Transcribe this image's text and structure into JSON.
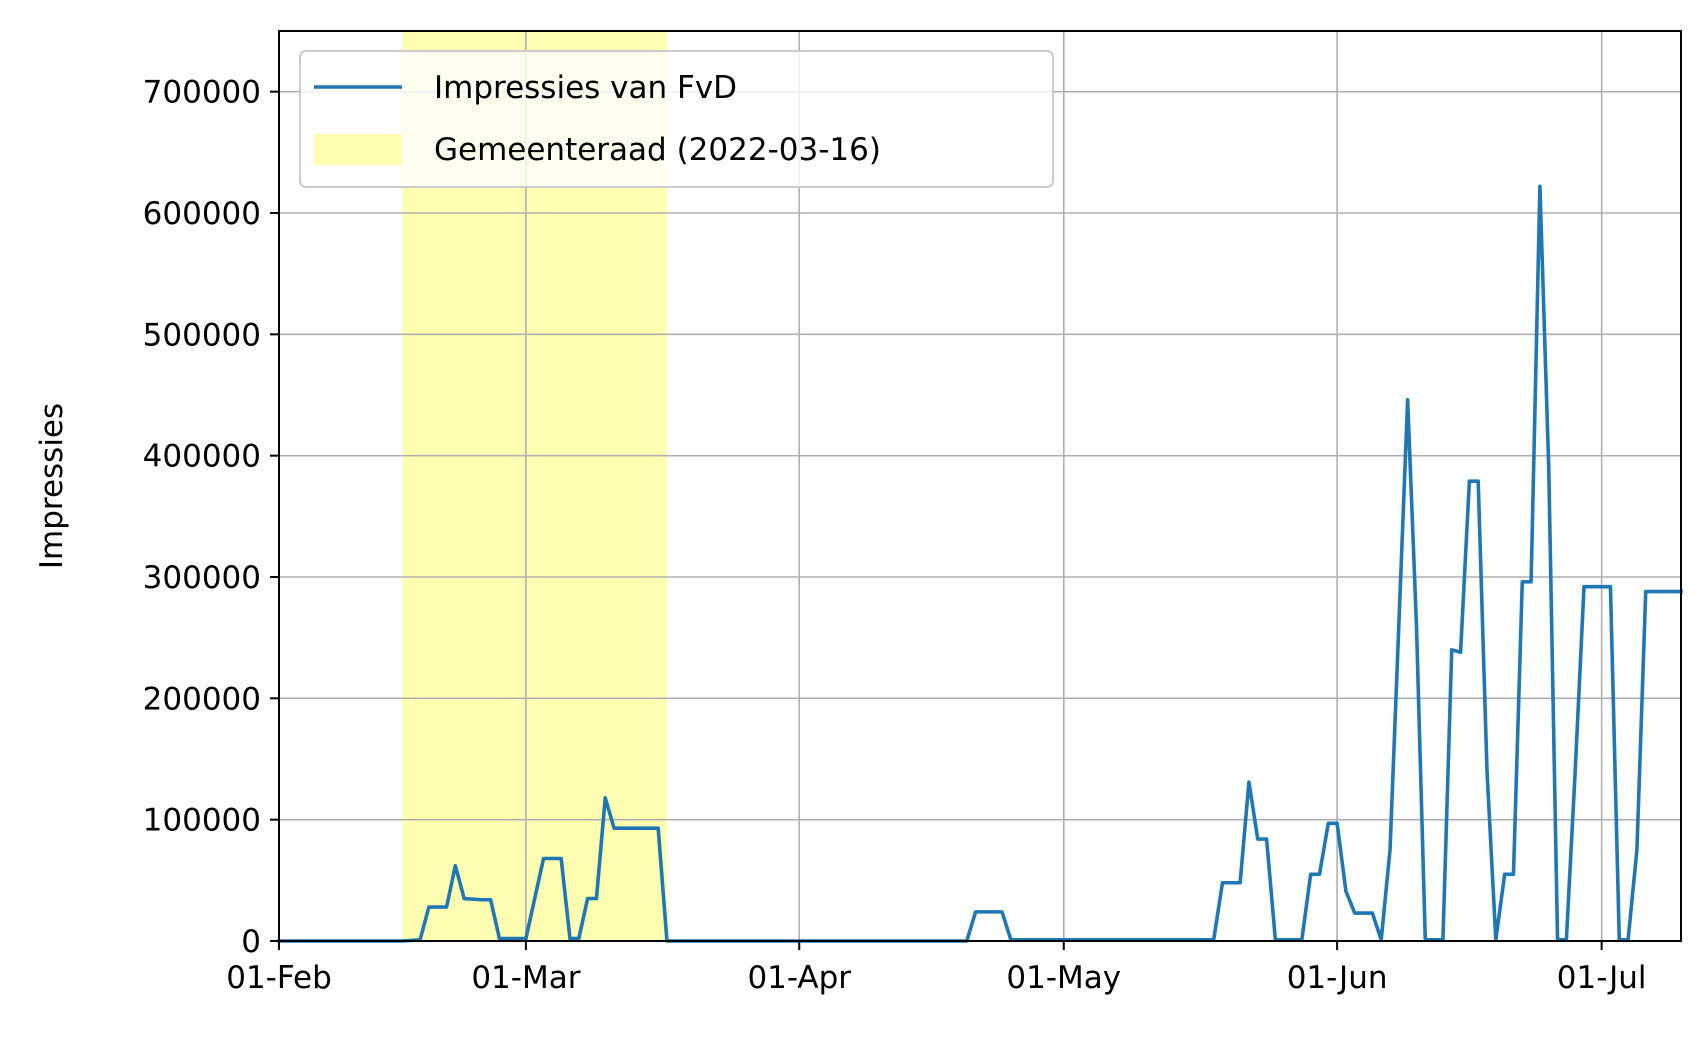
{
  "chart_data": {
    "type": "line",
    "title": "",
    "xlabel": "",
    "ylabel": "Impressies",
    "x_tick_labels": [
      "01-Feb",
      "01-Mar",
      "01-Apr",
      "01-May",
      "01-Jun",
      "01-Jul"
    ],
    "x_tick_dates": [
      "2022-02-01",
      "2022-03-01",
      "2022-04-01",
      "2022-05-01",
      "2022-06-01",
      "2022-07-01"
    ],
    "xlim": [
      "2022-02-01",
      "2022-07-10"
    ],
    "y_tick_labels": [
      "0",
      "100000",
      "200000",
      "300000",
      "400000",
      "500000",
      "600000",
      "700000"
    ],
    "y_ticks": [
      0,
      100000,
      200000,
      300000,
      400000,
      500000,
      600000,
      700000
    ],
    "ylim": [
      0,
      750000
    ],
    "grid": true,
    "legend_position": "top-left",
    "series": [
      {
        "name": "Impressies van FvD",
        "color": "#1f77b4",
        "points": [
          [
            "2022-02-01",
            0
          ],
          [
            "2022-02-15",
            0
          ],
          [
            "2022-02-17",
            1000
          ],
          [
            "2022-02-18",
            28000
          ],
          [
            "2022-02-20",
            28000
          ],
          [
            "2022-02-21",
            62000
          ],
          [
            "2022-02-22",
            35000
          ],
          [
            "2022-02-24",
            34000
          ],
          [
            "2022-02-25",
            34000
          ],
          [
            "2022-02-26",
            2000
          ],
          [
            "2022-02-28",
            2000
          ],
          [
            "2022-03-01",
            2000
          ],
          [
            "2022-03-03",
            68000
          ],
          [
            "2022-03-05",
            68000
          ],
          [
            "2022-03-06",
            2000
          ],
          [
            "2022-03-07",
            2000
          ],
          [
            "2022-03-08",
            35000
          ],
          [
            "2022-03-09",
            35000
          ],
          [
            "2022-03-10",
            118000
          ],
          [
            "2022-03-11",
            93000
          ],
          [
            "2022-03-16",
            93000
          ],
          [
            "2022-03-17",
            0
          ],
          [
            "2022-04-20",
            0
          ],
          [
            "2022-04-21",
            24000
          ],
          [
            "2022-04-24",
            24000
          ],
          [
            "2022-04-25",
            1000
          ],
          [
            "2022-05-18",
            1000
          ],
          [
            "2022-05-19",
            48000
          ],
          [
            "2022-05-21",
            48000
          ],
          [
            "2022-05-22",
            131000
          ],
          [
            "2022-05-23",
            84000
          ],
          [
            "2022-05-24",
            84000
          ],
          [
            "2022-05-25",
            1000
          ],
          [
            "2022-05-28",
            1000
          ],
          [
            "2022-05-29",
            55000
          ],
          [
            "2022-05-30",
            55000
          ],
          [
            "2022-05-31",
            97000
          ],
          [
            "2022-06-01",
            97000
          ],
          [
            "2022-06-02",
            41000
          ],
          [
            "2022-06-03",
            23000
          ],
          [
            "2022-06-05",
            23000
          ],
          [
            "2022-06-06",
            1000
          ],
          [
            "2022-06-07",
            75000
          ],
          [
            "2022-06-09",
            446000
          ],
          [
            "2022-06-10",
            260000
          ],
          [
            "2022-06-11",
            1000
          ],
          [
            "2022-06-13",
            1000
          ],
          [
            "2022-06-14",
            240000
          ],
          [
            "2022-06-15",
            238000
          ],
          [
            "2022-06-16",
            379000
          ],
          [
            "2022-06-17",
            379000
          ],
          [
            "2022-06-18",
            140000
          ],
          [
            "2022-06-19",
            1000
          ],
          [
            "2022-06-20",
            55000
          ],
          [
            "2022-06-21",
            55000
          ],
          [
            "2022-06-22",
            296000
          ],
          [
            "2022-06-23",
            296000
          ],
          [
            "2022-06-24",
            622000
          ],
          [
            "2022-06-25",
            390000
          ],
          [
            "2022-06-26",
            1000
          ],
          [
            "2022-06-27",
            1000
          ],
          [
            "2022-06-28",
            140000
          ],
          [
            "2022-06-29",
            292000
          ],
          [
            "2022-07-02",
            292000
          ],
          [
            "2022-07-03",
            1000
          ],
          [
            "2022-07-04",
            1000
          ],
          [
            "2022-07-05",
            75000
          ],
          [
            "2022-07-06",
            288000
          ],
          [
            "2022-07-10",
            288000
          ]
        ]
      }
    ],
    "highlight": {
      "name": "Gemeenteraad (2022-03-16)",
      "start": "2022-02-15",
      "end": "2022-03-17",
      "color": "#ffff00",
      "opacity": 0.3
    }
  }
}
